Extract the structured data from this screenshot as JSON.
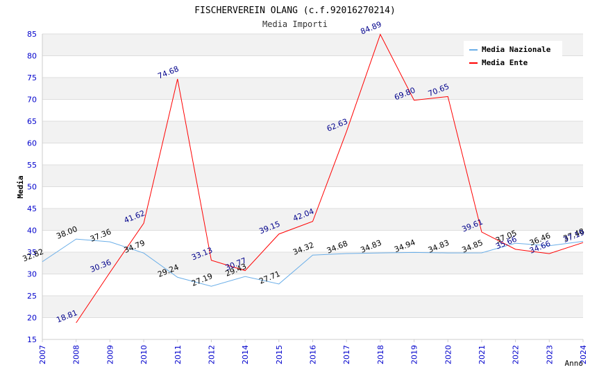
{
  "chart_data": {
    "type": "line",
    "title": "FISCHERVEREIN OLANG (c.f.92016270214)",
    "subtitle": "Media Importi",
    "xlabel": "Anno",
    "ylabel": "Media",
    "ylim": [
      15,
      85
    ],
    "yticks": [
      15,
      20,
      25,
      30,
      35,
      40,
      45,
      50,
      55,
      60,
      65,
      70,
      75,
      80,
      85
    ],
    "categories": [
      "2007",
      "2008",
      "2009",
      "2010",
      "2011",
      "2012",
      "2014",
      "2015",
      "2016",
      "2017",
      "2018",
      "2019",
      "2020",
      "2021",
      "2022",
      "2023",
      "2024"
    ],
    "grid": "horizontal bands",
    "legend_position": "top-right",
    "series": [
      {
        "name": "Media Nazionale",
        "color": "#6aaee8",
        "label_color": "#000000",
        "values": [
          32.82,
          38.0,
          37.36,
          34.79,
          29.24,
          27.19,
          29.43,
          27.71,
          34.32,
          34.68,
          34.83,
          34.94,
          34.83,
          34.85,
          37.05,
          36.46,
          37.48
        ]
      },
      {
        "name": "Media Ente",
        "color": "#ff0000",
        "label_color": "#00008b",
        "values": [
          null,
          18.81,
          30.36,
          41.62,
          74.68,
          33.13,
          30.77,
          39.15,
          42.04,
          62.63,
          84.89,
          69.8,
          70.65,
          39.61,
          35.66,
          34.66,
          37.19
        ]
      }
    ]
  }
}
